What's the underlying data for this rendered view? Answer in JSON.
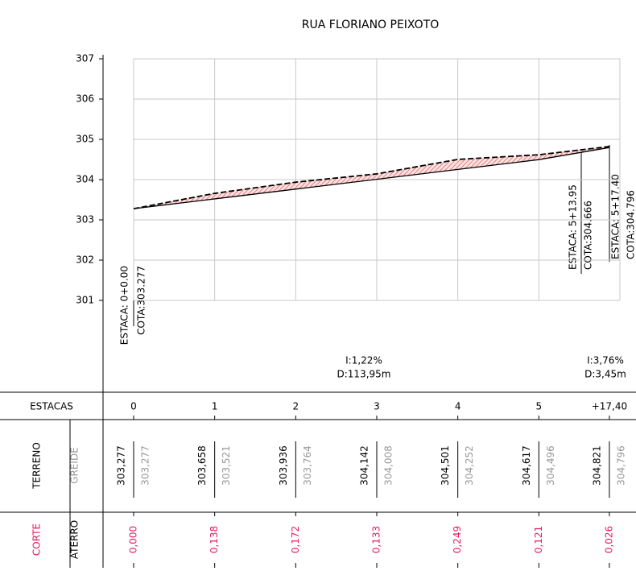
{
  "chart_data": {
    "type": "line",
    "title": "RUA FLORIANO PEIXOTO",
    "x": [
      0,
      20,
      40,
      60,
      80,
      100,
      117.4
    ],
    "xlim": [
      0,
      120
    ],
    "xticks": [
      {
        "value": 0,
        "label": "0"
      },
      {
        "value": 20,
        "label": "1"
      },
      {
        "value": 40,
        "label": "2"
      },
      {
        "value": 60,
        "label": "3"
      },
      {
        "value": 80,
        "label": "4"
      },
      {
        "value": 100,
        "label": "5"
      },
      {
        "value": 117.4,
        "label": "+17,40"
      }
    ],
    "ylim": [
      301,
      307
    ],
    "yticks": [
      301,
      302,
      303,
      304,
      305,
      306,
      307
    ],
    "grid": true,
    "series": [
      {
        "name": "TERRENO",
        "color": "#000000",
        "label_color": "#000000",
        "values": [
          303.277,
          303.658,
          303.936,
          304.142,
          304.501,
          304.617,
          304.821
        ],
        "value_labels": [
          "303,277",
          "303,658",
          "303,936",
          "304,142",
          "304,501",
          "304,617",
          "304,821"
        ]
      },
      {
        "name": "GREIDE",
        "color": "#000000",
        "label_color": "#999999",
        "values": [
          303.277,
          303.521,
          303.764,
          304.008,
          304.252,
          304.496,
          304.796
        ],
        "value_labels": [
          "303,277",
          "303,521",
          "303,764",
          "304,008",
          "304,252",
          "304,496",
          "304,796"
        ]
      }
    ],
    "cut": {
      "name": "CORTE",
      "color": "#e6195a",
      "values": [
        0,
        0.138,
        0.172,
        0.133,
        0.249,
        0.121,
        0.026
      ],
      "value_labels": [
        "0,000",
        "0,138",
        "0,172",
        "0,133",
        "0,249",
        "0,121",
        "0,026"
      ]
    },
    "fill_label": "ATERRO",
    "stations_label": "ESTACAS",
    "annotations": [
      [
        "ESTACA: 0+0.00",
        "COTA:303.277"
      ],
      [
        "ESTACA: 5+13.95",
        "COTA:304.666"
      ],
      [
        "ESTACA: 5+17.40",
        "COTA:304.796"
      ]
    ],
    "grades": [
      [
        "I:1,22%",
        "D:113,95m"
      ],
      [
        "I:3,76%",
        "D:3,45m"
      ]
    ]
  }
}
